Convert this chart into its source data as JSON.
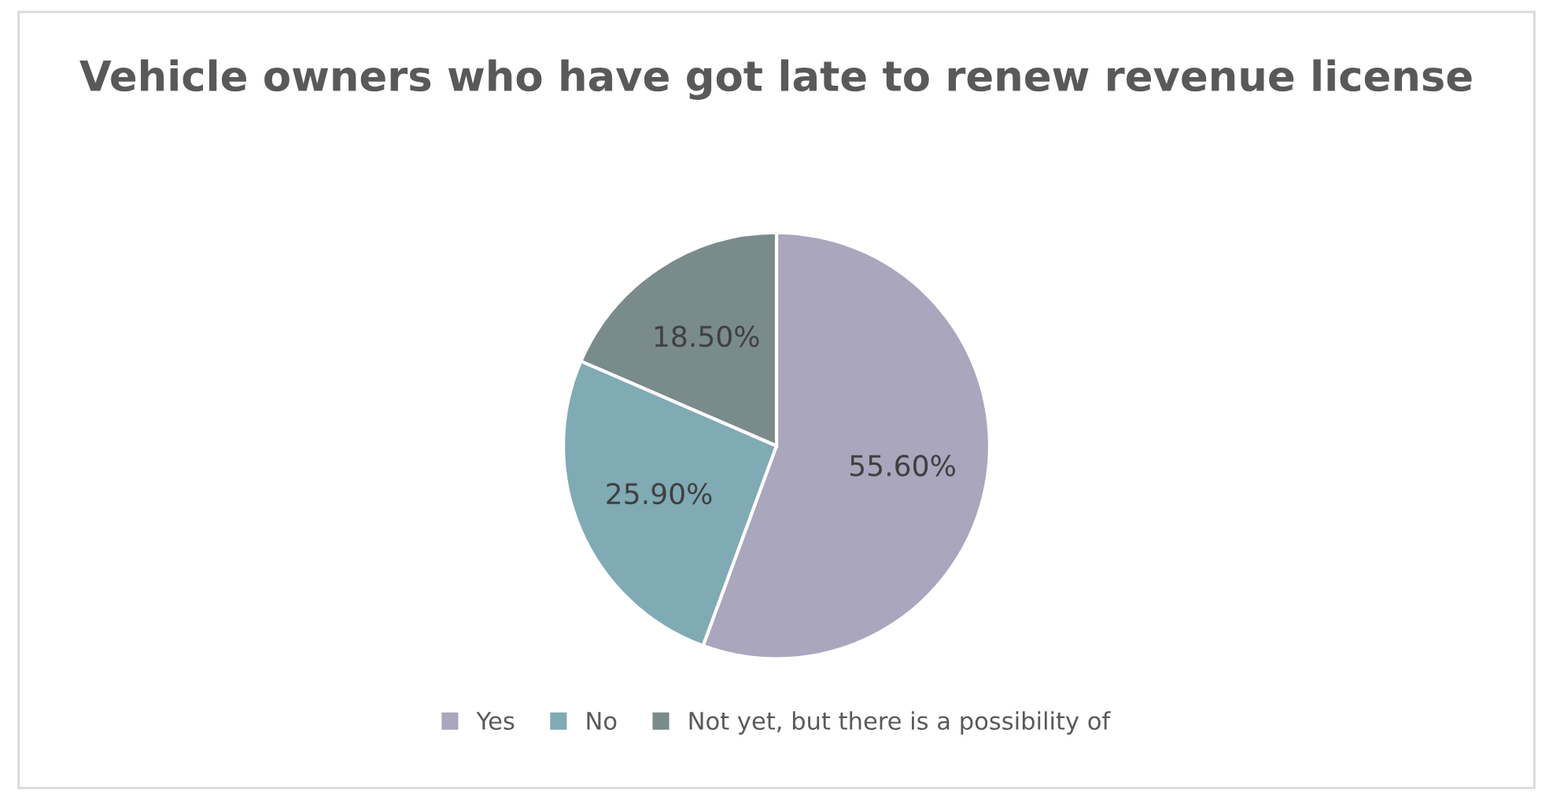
{
  "chart_data": {
    "type": "pie",
    "title": "Vehicle owners who have got late to renew revenue license",
    "categories": [
      "Yes",
      "No",
      "Not yet, but there is a possibility of"
    ],
    "values": [
      55.6,
      25.9,
      18.5
    ],
    "colors": [
      "#a9a6bd",
      "#80aab4",
      "#7a8b8b"
    ],
    "value_labels": [
      "55.60%",
      "25.90%",
      "18.50%"
    ],
    "legend": "bottom"
  }
}
